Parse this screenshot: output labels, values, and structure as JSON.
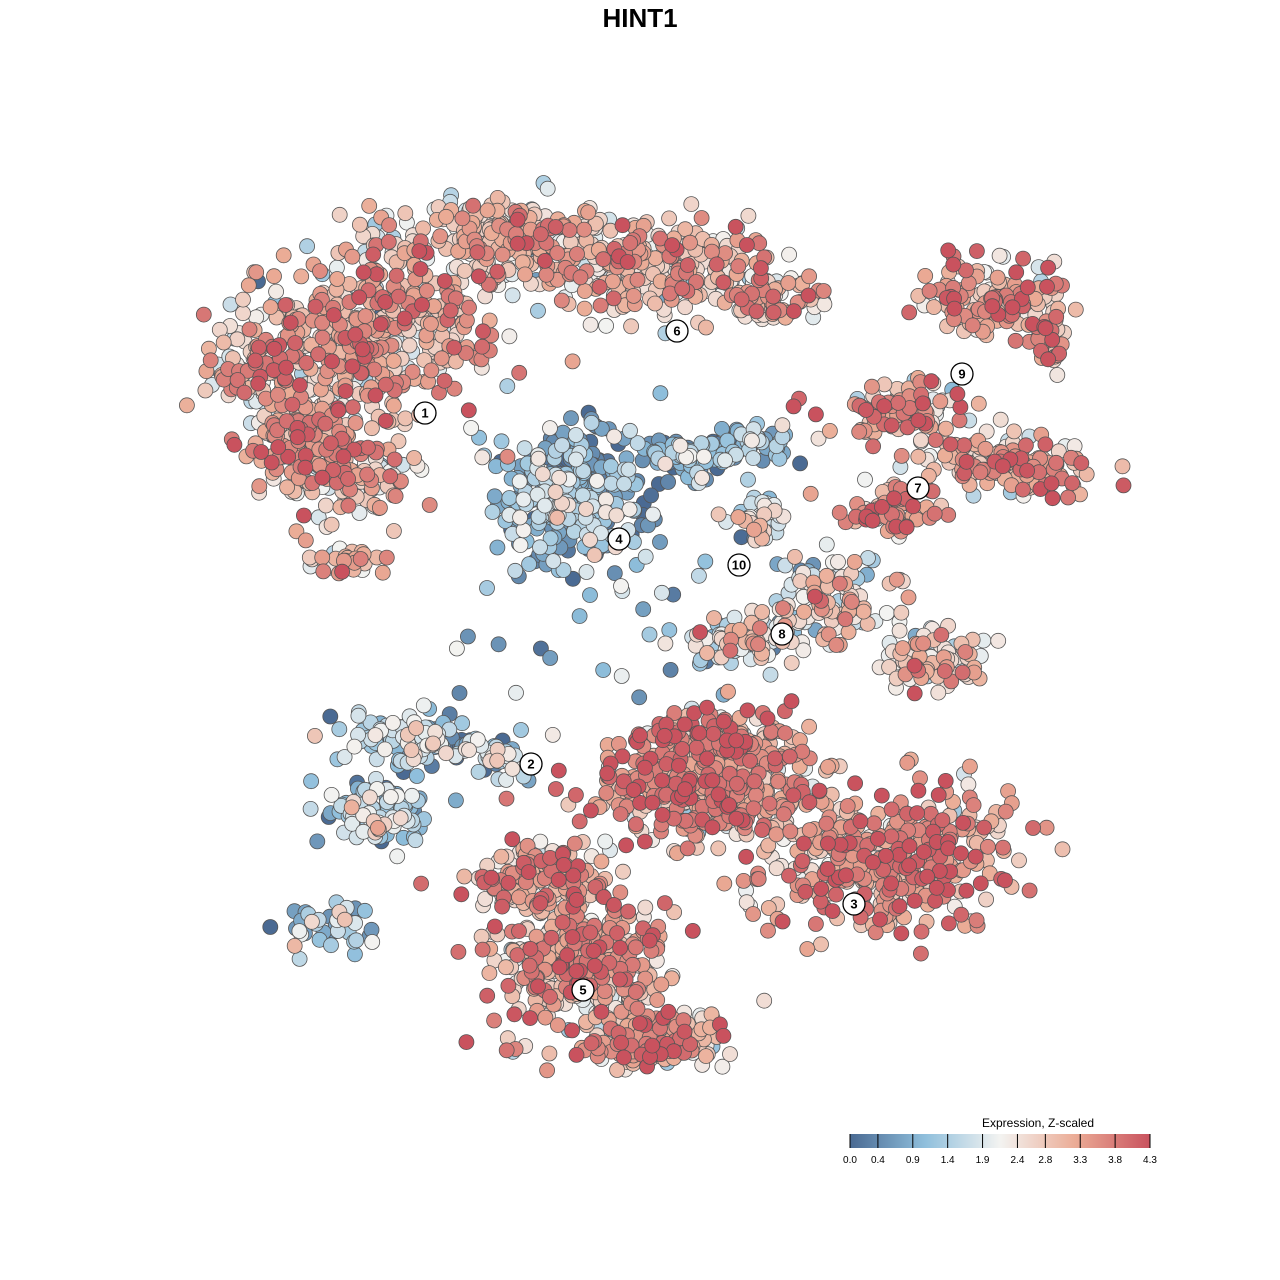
{
  "chart_data": {
    "type": "scatter",
    "title": "HINT1",
    "xlabel": "",
    "ylabel": "",
    "grid": false,
    "legend": {
      "title": "Expression, Z-scaled",
      "placement": "bottom-right",
      "ticks": [
        0.0,
        0.4,
        0.9,
        1.4,
        1.9,
        2.4,
        2.8,
        3.3,
        3.8,
        4.3
      ],
      "tick_labels": [
        "0.0",
        "0.4",
        "0.9",
        "1.4",
        "1.9",
        "2.4",
        "2.8",
        "3.3",
        "3.8",
        "4.3"
      ],
      "range": [
        0,
        4.3
      ]
    },
    "colors": {
      "low": "#4a6a93",
      "mid_low": "#8fbfdc",
      "mid": "#f3f3f1",
      "mid_high": "#ebac96",
      "high": "#c9525e",
      "point_stroke": "#555555"
    },
    "xlim": [
      -50,
      50
    ],
    "ylim": [
      -50,
      50
    ],
    "clusters": [
      {
        "id": "1",
        "x": -21.5,
        "y": 22.7,
        "mean_expression": 3.0
      },
      {
        "id": "2",
        "x": -10.9,
        "y": -12.4,
        "mean_expression": 1.4
      },
      {
        "id": "3",
        "x": 21.4,
        "y": -26.4,
        "mean_expression": 3.4
      },
      {
        "id": "4",
        "x": -2.1,
        "y": 10.1,
        "mean_expression": 0.9
      },
      {
        "id": "5",
        "x": -5.7,
        "y": -35.0,
        "mean_expression": 3.1
      },
      {
        "id": "6",
        "x": 3.7,
        "y": 30.9,
        "mean_expression": 2.8
      },
      {
        "id": "7",
        "x": 27.8,
        "y": 15.2,
        "mean_expression": 3.1
      },
      {
        "id": "8",
        "x": 14.2,
        "y": 0.6,
        "mean_expression": 2.4
      },
      {
        "id": "9",
        "x": 32.2,
        "y": 26.6,
        "mean_expression": 3.2
      },
      {
        "id": "10",
        "x": 9.9,
        "y": 7.5,
        "mean_expression": 1.9
      }
    ]
  }
}
